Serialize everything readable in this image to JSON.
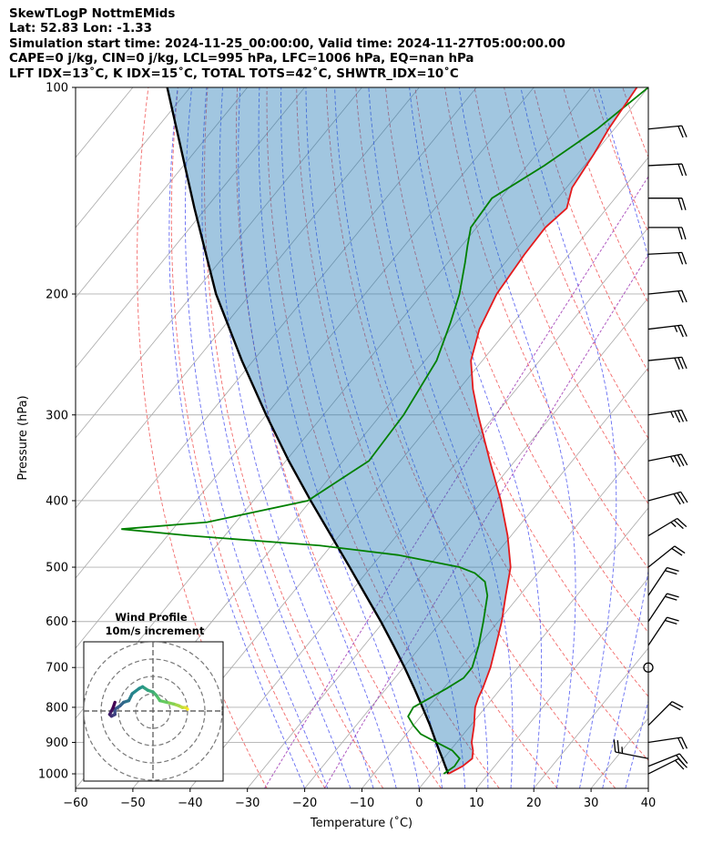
{
  "header": {
    "line1": "SkewTLogP NottmEMids",
    "line2": "Lat: 52.83   Lon: -1.33",
    "line3": "Simulation start time: 2024-11-25_00:00:00, Valid time: 2024-11-27T05:00:00.00",
    "line4": "CAPE=0 j/kg, CIN=0 j/kg, LCL=995 hPa, LFC=1006 hPa, EQ=nan hPa",
    "line5": "LFT IDX=13˚C, K IDX=15˚C, TOTAL TOTS=42˚C, SHWTR_IDX=10˚C"
  },
  "chart_data": {
    "type": "line",
    "xlabel": "Temperature (˚C)",
    "ylabel": "Pressure (hPa)",
    "xlim": [
      -60,
      40
    ],
    "ylim": [
      1050,
      100
    ],
    "yscale": "log",
    "skew": true,
    "grid": true,
    "xticks": [
      -60,
      -50,
      -40,
      -30,
      -20,
      -10,
      0,
      10,
      20,
      30,
      40
    ],
    "yticks": [
      100,
      200,
      300,
      400,
      500,
      600,
      700,
      800,
      900,
      1000
    ],
    "series": [
      {
        "role": "temperature",
        "color": "#e41a1c",
        "points": [
          [
            1000,
            3.0
          ],
          [
            975,
            4.4
          ],
          [
            950,
            5.0
          ],
          [
            925,
            4.0
          ],
          [
            900,
            2.6
          ],
          [
            850,
            0.6
          ],
          [
            825,
            -0.6
          ],
          [
            800,
            -1.8
          ],
          [
            775,
            -2.6
          ],
          [
            750,
            -3.2
          ],
          [
            700,
            -4.8
          ],
          [
            650,
            -7.0
          ],
          [
            600,
            -9.4
          ],
          [
            550,
            -12.4
          ],
          [
            500,
            -15.6
          ],
          [
            450,
            -20.6
          ],
          [
            400,
            -26.8
          ],
          [
            350,
            -34.4
          ],
          [
            300,
            -43.0
          ],
          [
            275,
            -47.6
          ],
          [
            250,
            -52.0
          ],
          [
            225,
            -55.0
          ],
          [
            200,
            -57.0
          ],
          [
            175,
            -57.8
          ],
          [
            160,
            -58.0
          ],
          [
            150,
            -57.0
          ],
          [
            140,
            -59.0
          ],
          [
            125,
            -60.0
          ],
          [
            115,
            -61.0
          ],
          [
            100,
            -62.0
          ]
        ]
      },
      {
        "role": "dewpoint",
        "color": "#008000",
        "points": [
          [
            1000,
            2.2
          ],
          [
            975,
            3.0
          ],
          [
            950,
            2.8
          ],
          [
            925,
            0.4
          ],
          [
            900,
            -3.5
          ],
          [
            875,
            -7.5
          ],
          [
            850,
            -10.0
          ],
          [
            825,
            -12.2
          ],
          [
            800,
            -12.6
          ],
          [
            775,
            -11.0
          ],
          [
            750,
            -9.4
          ],
          [
            725,
            -8.0
          ],
          [
            700,
            -8.0
          ],
          [
            650,
            -10.0
          ],
          [
            600,
            -12.6
          ],
          [
            550,
            -15.6
          ],
          [
            525,
            -18.0
          ],
          [
            510,
            -21.0
          ],
          [
            500,
            -24.5
          ],
          [
            480,
            -37.0
          ],
          [
            465,
            -52.0
          ],
          [
            450,
            -76.0
          ],
          [
            440,
            -89.0
          ],
          [
            430,
            -75.0
          ],
          [
            400,
            -60.5
          ],
          [
            350,
            -55.5
          ],
          [
            300,
            -56.0
          ],
          [
            250,
            -58.0
          ],
          [
            220,
            -61.0
          ],
          [
            200,
            -63.5
          ],
          [
            180,
            -67.0
          ],
          [
            170,
            -69.0
          ],
          [
            160,
            -71.0
          ],
          [
            145,
            -71.5
          ],
          [
            130,
            -67.0
          ],
          [
            115,
            -63.0
          ],
          [
            100,
            -60.0
          ]
        ]
      },
      {
        "role": "parcel",
        "color": "#000000",
        "points": [
          [
            1000,
            3.0
          ],
          [
            975,
            1.4
          ],
          [
            950,
            -0.2
          ],
          [
            925,
            -1.9
          ],
          [
            900,
            -3.6
          ],
          [
            850,
            -7.1
          ],
          [
            800,
            -11.0
          ],
          [
            750,
            -15.2
          ],
          [
            700,
            -19.8
          ],
          [
            650,
            -24.9
          ],
          [
            600,
            -30.5
          ],
          [
            550,
            -36.8
          ],
          [
            500,
            -43.7
          ],
          [
            450,
            -51.4
          ],
          [
            400,
            -60.0
          ],
          [
            350,
            -69.5
          ],
          [
            300,
            -80.0
          ],
          [
            250,
            -92.0
          ],
          [
            200,
            -106.0
          ],
          [
            150,
            -122.0
          ],
          [
            100,
            -144.0
          ]
        ]
      }
    ],
    "wind_barbs": [
      {
        "p": 1000,
        "u": 20,
        "v": 10
      },
      {
        "p": 975,
        "u": 20,
        "v": 8
      },
      {
        "p": 950,
        "u": -25,
        "v": 5
      },
      {
        "p": 900,
        "u": 20,
        "v": 3
      },
      {
        "p": 850,
        "u": 15,
        "v": 15
      },
      {
        "p": 700,
        "u": 0,
        "v": 0
      },
      {
        "p": 650,
        "u": 10,
        "v": 15
      },
      {
        "p": 600,
        "u": 10,
        "v": 15
      },
      {
        "p": 550,
        "u": 10,
        "v": 15
      },
      {
        "p": 500,
        "u": 15,
        "v": 12
      },
      {
        "p": 450,
        "u": 20,
        "v": 12
      },
      {
        "p": 400,
        "u": 30,
        "v": 8
      },
      {
        "p": 350,
        "u": 35,
        "v": 7
      },
      {
        "p": 300,
        "u": 35,
        "v": 5
      },
      {
        "p": 250,
        "u": 30,
        "v": 3
      },
      {
        "p": 225,
        "u": 25,
        "v": 3
      },
      {
        "p": 200,
        "u": 20,
        "v": 2
      },
      {
        "p": 175,
        "u": 20,
        "v": 1
      },
      {
        "p": 160,
        "u": 20,
        "v": 0
      },
      {
        "p": 145,
        "u": 20,
        "v": 0
      },
      {
        "p": 130,
        "u": 20,
        "v": 1
      },
      {
        "p": 115,
        "u": 20,
        "v": 2
      }
    ],
    "inset": {
      "title": "Wind Profile",
      "subtitle": "10m/s increment",
      "type": "hodograph",
      "rings": [
        10,
        20,
        30,
        40
      ],
      "points": [
        [
          20,
          1
        ],
        [
          19,
          2
        ],
        [
          17,
          2
        ],
        [
          15,
          3
        ],
        [
          12,
          4
        ],
        [
          8,
          5
        ],
        [
          4,
          6
        ],
        [
          2,
          9
        ],
        [
          0,
          11
        ],
        [
          -3,
          12
        ],
        [
          -6,
          14
        ],
        [
          -8,
          13
        ],
        [
          -12,
          10
        ],
        [
          -14,
          6
        ],
        [
          -17,
          5
        ],
        [
          -19,
          3
        ],
        [
          -22,
          1
        ],
        [
          -22,
          -2
        ],
        [
          -24,
          -3
        ],
        [
          -25,
          -2
        ],
        [
          -24,
          0
        ],
        [
          -23,
          2
        ],
        [
          -22,
          5
        ]
      ]
    }
  }
}
